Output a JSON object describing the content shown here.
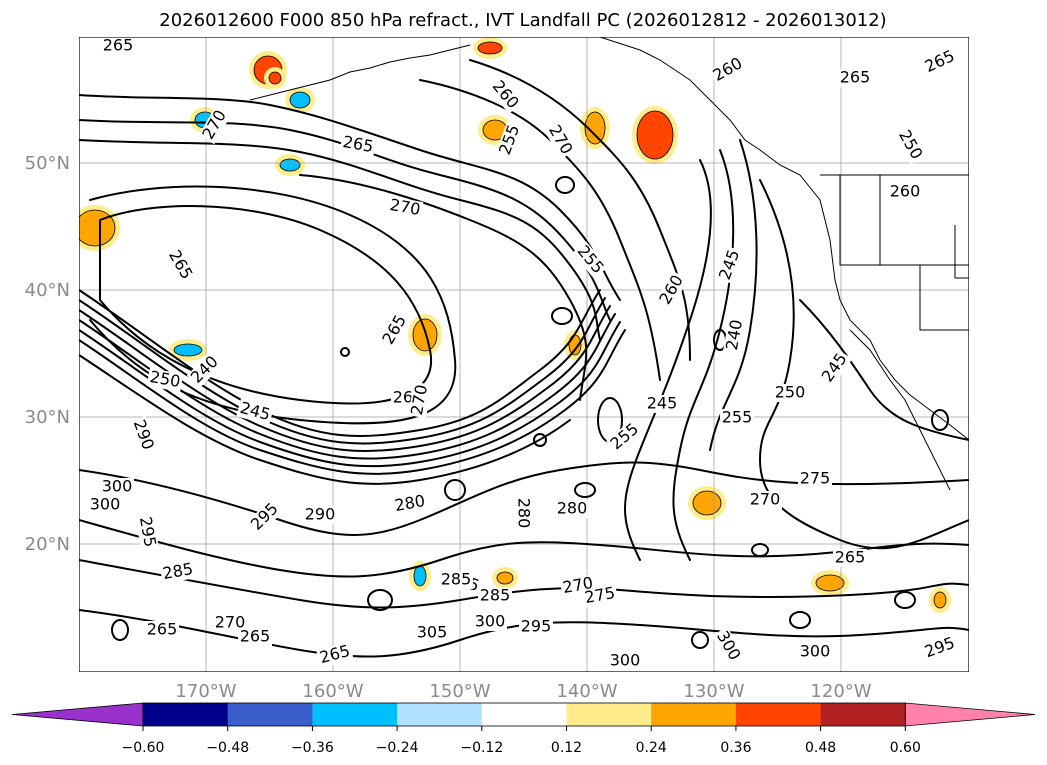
{
  "title": "2026012600 F000 850 hPa refract., IVT Landfall PC (2026012812 - 2026013012)",
  "lat_labels": [
    "50°N",
    "40°N",
    "30°N",
    "20°N"
  ],
  "lon_labels": [
    "170°W",
    "160°W",
    "150°W",
    "140°W",
    "130°W",
    "120°W"
  ],
  "colorbar": {
    "ticks": [
      "−0.60",
      "−0.48",
      "−0.36",
      "−0.24",
      "−0.12",
      "0.12",
      "0.24",
      "0.36",
      "0.48",
      "0.60"
    ],
    "colors": [
      "#9932cc",
      "#00008b",
      "#3a5fcd",
      "#00bfff",
      "#b0e2ff",
      "#ffffff",
      "#ffec8b",
      "#ffa500",
      "#ff4500",
      "#b22222",
      "#ff82ab"
    ]
  },
  "contour_labels": [
    "265",
    "260",
    "265",
    "265",
    "270",
    "255",
    "260",
    "270",
    "250",
    "260",
    "265",
    "270",
    "265",
    "255",
    "245",
    "240",
    "260",
    "250",
    "240",
    "245",
    "265",
    "260",
    "270",
    "245",
    "255",
    "250",
    "255",
    "245",
    "290",
    "300",
    "280",
    "280",
    "275",
    "270",
    "285",
    "280",
    "270",
    "275",
    "285",
    "285",
    "305",
    "300",
    "295",
    "265",
    "300",
    "300",
    "300",
    "295",
    "265",
    "265",
    "295",
    "300",
    "270",
    "265",
    "290",
    "295",
    "285"
  ],
  "anomaly_patches": [
    {
      "color": "#ff4500"
    },
    {
      "color": "#ff4500"
    },
    {
      "color": "#ffa500"
    },
    {
      "color": "#ff4500"
    },
    {
      "color": "#ffa500"
    },
    {
      "color": "#00bfff"
    },
    {
      "color": "#00bfff"
    },
    {
      "color": "#ffa500"
    },
    {
      "color": "#00bfff"
    },
    {
      "color": "#ffa500"
    },
    {
      "color": "#ffa500"
    },
    {
      "color": "#00bfff"
    },
    {
      "color": "#ffa500"
    },
    {
      "color": "#ffa500"
    },
    {
      "color": "#ff4500"
    },
    {
      "color": "#ffa500"
    },
    {
      "color": "#00bfff"
    },
    {
      "color": "#ffa500"
    }
  ]
}
